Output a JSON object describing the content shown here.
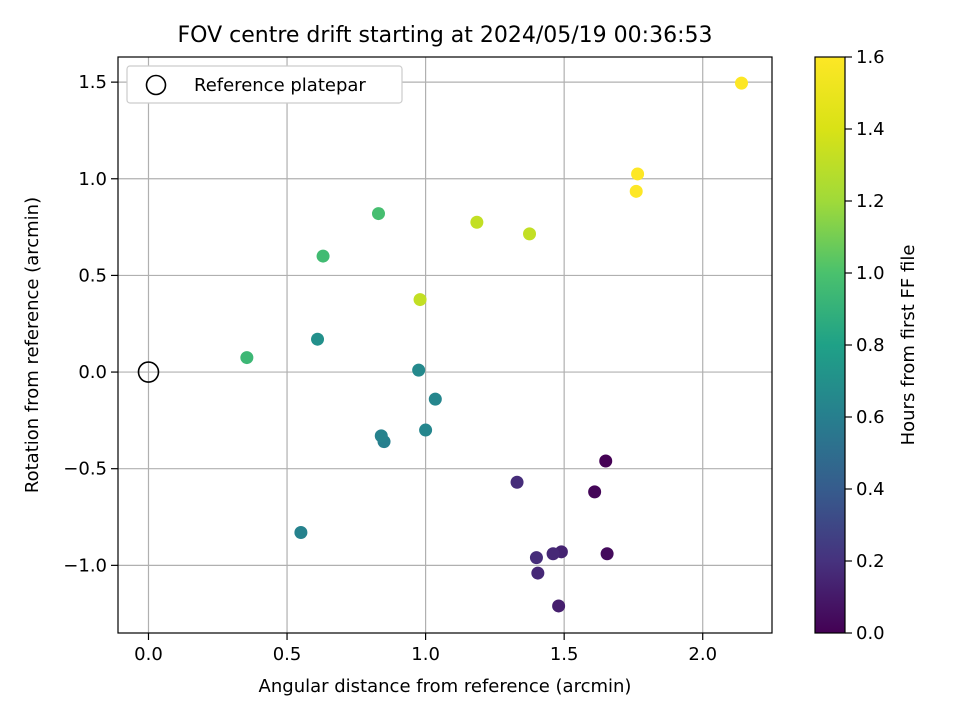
{
  "chart_data": {
    "type": "scatter",
    "title": "FOV centre drift starting at 2024/05/19 00:36:53",
    "xlabel": "Angular distance from reference (arcmin)",
    "ylabel": "Rotation from reference (arcmin)",
    "xlim": [
      -0.11,
      2.25
    ],
    "ylim": [
      -1.35,
      1.63
    ],
    "xticks": [
      0.0,
      0.5,
      1.0,
      1.5,
      2.0
    ],
    "xtick_labels": [
      "0.0",
      "0.5",
      "1.0",
      "1.5",
      "2.0"
    ],
    "yticks": [
      -1.0,
      -0.5,
      0.0,
      0.5,
      1.0,
      1.5
    ],
    "ytick_labels": [
      "−1.0",
      "−0.5",
      "0.0",
      "0.5",
      "1.0",
      "1.5"
    ],
    "grid": true,
    "legend": {
      "placement": "upper-left",
      "entries": [
        {
          "label": "Reference platepar",
          "marker": "open-circle",
          "color": "#000000"
        }
      ]
    },
    "reference_point": {
      "x": 0.0,
      "y": 0.0
    },
    "colorbar": {
      "label": "Hours from first FF file",
      "colormap": "viridis",
      "range": [
        0.0,
        1.6
      ],
      "ticks": [
        0.0,
        0.2,
        0.4,
        0.6,
        0.8,
        1.0,
        1.2,
        1.4,
        1.6
      ],
      "tick_labels": [
        "0.0",
        "0.2",
        "0.4",
        "0.6",
        "0.8",
        "1.0",
        "1.2",
        "1.4",
        "1.6"
      ]
    },
    "points": [
      {
        "x": 1.65,
        "y": -0.46,
        "hours": 0.0
      },
      {
        "x": 1.61,
        "y": -0.62,
        "hours": 0.02
      },
      {
        "x": 1.655,
        "y": -0.94,
        "hours": 0.04
      },
      {
        "x": 1.48,
        "y": -1.21,
        "hours": 0.12
      },
      {
        "x": 1.49,
        "y": -0.93,
        "hours": 0.14
      },
      {
        "x": 1.46,
        "y": -0.94,
        "hours": 0.16
      },
      {
        "x": 1.4,
        "y": -0.96,
        "hours": 0.18
      },
      {
        "x": 1.405,
        "y": -1.04,
        "hours": 0.16
      },
      {
        "x": 1.33,
        "y": -0.57,
        "hours": 0.18
      },
      {
        "x": 0.55,
        "y": -0.83,
        "hours": 0.62
      },
      {
        "x": 0.85,
        "y": -0.36,
        "hours": 0.6
      },
      {
        "x": 0.84,
        "y": -0.33,
        "hours": 0.62
      },
      {
        "x": 1.0,
        "y": -0.3,
        "hours": 0.64
      },
      {
        "x": 1.035,
        "y": -0.14,
        "hours": 0.64
      },
      {
        "x": 0.975,
        "y": 0.01,
        "hours": 0.66
      },
      {
        "x": 0.61,
        "y": 0.17,
        "hours": 0.7
      },
      {
        "x": 0.355,
        "y": 0.075,
        "hours": 0.94
      },
      {
        "x": 0.63,
        "y": 0.6,
        "hours": 0.96
      },
      {
        "x": 0.83,
        "y": 0.82,
        "hours": 0.98
      },
      {
        "x": 0.98,
        "y": 0.375,
        "hours": 1.32
      },
      {
        "x": 1.185,
        "y": 0.775,
        "hours": 1.32
      },
      {
        "x": 1.375,
        "y": 0.715,
        "hours": 1.32
      },
      {
        "x": 1.76,
        "y": 0.935,
        "hours": 1.6
      },
      {
        "x": 1.765,
        "y": 1.025,
        "hours": 1.6
      },
      {
        "x": 2.14,
        "y": 1.495,
        "hours": 1.6
      }
    ]
  }
}
